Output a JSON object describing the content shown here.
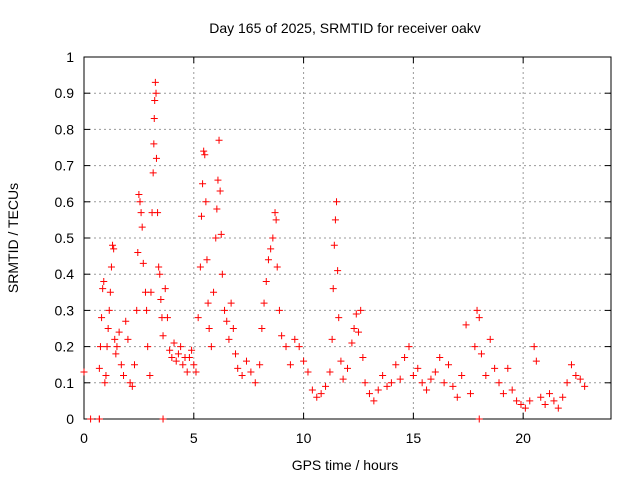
{
  "chart_data": {
    "type": "scatter",
    "title": "Day 165 of 2025, SRMTID for receiver oakv",
    "xlabel": "GPS time / hours",
    "ylabel": "SRMTID / TECUs",
    "xlim": [
      0,
      24
    ],
    "ylim": [
      0,
      1
    ],
    "xticks": [
      0,
      5,
      10,
      15,
      20
    ],
    "xtick_labels": [
      "0",
      "5",
      "10",
      "15",
      "20"
    ],
    "yticks": [
      0,
      0.1,
      0.2,
      0.3,
      0.4,
      0.5,
      0.6,
      0.7,
      0.8,
      0.9,
      1
    ],
    "ytick_labels": [
      "0",
      "0.1",
      "0.2",
      "0.3",
      "0.4",
      "0.5",
      "0.6",
      "0.7",
      "0.8",
      "0.9",
      "1"
    ],
    "grid": true,
    "marker": "+",
    "color": "#ff0000",
    "series": [
      {
        "name": "SRMTID",
        "points": [
          [
            0.0,
            0.13
          ],
          [
            0.3,
            0.0
          ],
          [
            0.7,
            0.0
          ],
          [
            0.7,
            0.0
          ],
          [
            3.6,
            0.0
          ],
          [
            18.0,
            0.0
          ],
          [
            0.7,
            0.14
          ],
          [
            0.75,
            0.2
          ],
          [
            0.8,
            0.28
          ],
          [
            0.85,
            0.36
          ],
          [
            0.9,
            0.38
          ],
          [
            0.95,
            0.1
          ],
          [
            1.0,
            0.12
          ],
          [
            1.05,
            0.2
          ],
          [
            1.1,
            0.25
          ],
          [
            1.15,
            0.3
          ],
          [
            1.2,
            0.35
          ],
          [
            1.25,
            0.42
          ],
          [
            1.3,
            0.48
          ],
          [
            1.35,
            0.47
          ],
          [
            1.4,
            0.22
          ],
          [
            1.45,
            0.18
          ],
          [
            1.5,
            0.2
          ],
          [
            1.6,
            0.24
          ],
          [
            1.7,
            0.15
          ],
          [
            1.8,
            0.12
          ],
          [
            1.9,
            0.27
          ],
          [
            2.0,
            0.22
          ],
          [
            2.1,
            0.1
          ],
          [
            2.2,
            0.09
          ],
          [
            2.3,
            0.15
          ],
          [
            2.4,
            0.3
          ],
          [
            2.45,
            0.46
          ],
          [
            2.5,
            0.62
          ],
          [
            2.55,
            0.6
          ],
          [
            2.6,
            0.57
          ],
          [
            2.65,
            0.53
          ],
          [
            2.7,
            0.43
          ],
          [
            2.8,
            0.35
          ],
          [
            2.85,
            0.3
          ],
          [
            2.9,
            0.2
          ],
          [
            3.0,
            0.12
          ],
          [
            3.05,
            0.35
          ],
          [
            3.1,
            0.57
          ],
          [
            3.15,
            0.68
          ],
          [
            3.18,
            0.76
          ],
          [
            3.2,
            0.83
          ],
          [
            3.22,
            0.88
          ],
          [
            3.25,
            0.93
          ],
          [
            3.28,
            0.9
          ],
          [
            3.3,
            0.72
          ],
          [
            3.35,
            0.57
          ],
          [
            3.4,
            0.42
          ],
          [
            3.45,
            0.4
          ],
          [
            3.5,
            0.33
          ],
          [
            3.55,
            0.28
          ],
          [
            3.6,
            0.23
          ],
          [
            3.7,
            0.36
          ],
          [
            3.8,
            0.28
          ],
          [
            3.9,
            0.19
          ],
          [
            4.0,
            0.17
          ],
          [
            4.1,
            0.21
          ],
          [
            4.2,
            0.16
          ],
          [
            4.3,
            0.18
          ],
          [
            4.4,
            0.2
          ],
          [
            4.5,
            0.15
          ],
          [
            4.6,
            0.17
          ],
          [
            4.7,
            0.13
          ],
          [
            4.8,
            0.17
          ],
          [
            4.9,
            0.19
          ],
          [
            5.0,
            0.15
          ],
          [
            5.1,
            0.13
          ],
          [
            5.2,
            0.28
          ],
          [
            5.3,
            0.42
          ],
          [
            5.35,
            0.56
          ],
          [
            5.4,
            0.65
          ],
          [
            5.45,
            0.74
          ],
          [
            5.5,
            0.73
          ],
          [
            5.55,
            0.6
          ],
          [
            5.6,
            0.44
          ],
          [
            5.65,
            0.32
          ],
          [
            5.7,
            0.25
          ],
          [
            5.8,
            0.2
          ],
          [
            5.9,
            0.35
          ],
          [
            6.0,
            0.5
          ],
          [
            6.05,
            0.58
          ],
          [
            6.1,
            0.66
          ],
          [
            6.15,
            0.77
          ],
          [
            6.2,
            0.63
          ],
          [
            6.25,
            0.51
          ],
          [
            6.3,
            0.4
          ],
          [
            6.4,
            0.3
          ],
          [
            6.5,
            0.27
          ],
          [
            6.6,
            0.22
          ],
          [
            6.7,
            0.32
          ],
          [
            6.8,
            0.25
          ],
          [
            6.9,
            0.18
          ],
          [
            7.0,
            0.14
          ],
          [
            7.2,
            0.12
          ],
          [
            7.4,
            0.16
          ],
          [
            7.6,
            0.13
          ],
          [
            7.8,
            0.1
          ],
          [
            8.0,
            0.15
          ],
          [
            8.1,
            0.25
          ],
          [
            8.2,
            0.32
          ],
          [
            8.3,
            0.38
          ],
          [
            8.4,
            0.44
          ],
          [
            8.5,
            0.47
          ],
          [
            8.6,
            0.5
          ],
          [
            8.7,
            0.57
          ],
          [
            8.75,
            0.55
          ],
          [
            8.8,
            0.42
          ],
          [
            8.9,
            0.3
          ],
          [
            9.0,
            0.23
          ],
          [
            9.2,
            0.2
          ],
          [
            9.4,
            0.15
          ],
          [
            9.6,
            0.22
          ],
          [
            9.8,
            0.2
          ],
          [
            10.0,
            0.16
          ],
          [
            10.2,
            0.13
          ],
          [
            10.4,
            0.08
          ],
          [
            10.6,
            0.06
          ],
          [
            10.8,
            0.07
          ],
          [
            11.0,
            0.09
          ],
          [
            11.2,
            0.13
          ],
          [
            11.3,
            0.22
          ],
          [
            11.35,
            0.36
          ],
          [
            11.4,
            0.48
          ],
          [
            11.45,
            0.55
          ],
          [
            11.5,
            0.6
          ],
          [
            11.55,
            0.41
          ],
          [
            11.6,
            0.28
          ],
          [
            11.7,
            0.16
          ],
          [
            11.8,
            0.11
          ],
          [
            12.0,
            0.14
          ],
          [
            12.2,
            0.21
          ],
          [
            12.3,
            0.25
          ],
          [
            12.4,
            0.29
          ],
          [
            12.5,
            0.24
          ],
          [
            12.6,
            0.3
          ],
          [
            12.7,
            0.17
          ],
          [
            12.8,
            0.1
          ],
          [
            13.0,
            0.07
          ],
          [
            13.2,
            0.05
          ],
          [
            13.4,
            0.08
          ],
          [
            13.6,
            0.12
          ],
          [
            13.8,
            0.09
          ],
          [
            14.0,
            0.1
          ],
          [
            14.2,
            0.15
          ],
          [
            14.4,
            0.11
          ],
          [
            14.6,
            0.17
          ],
          [
            14.8,
            0.2
          ],
          [
            15.0,
            0.12
          ],
          [
            15.2,
            0.14
          ],
          [
            15.4,
            0.1
          ],
          [
            15.6,
            0.08
          ],
          [
            15.8,
            0.11
          ],
          [
            16.0,
            0.13
          ],
          [
            16.2,
            0.17
          ],
          [
            16.4,
            0.1
          ],
          [
            16.6,
            0.15
          ],
          [
            16.8,
            0.09
          ],
          [
            17.0,
            0.06
          ],
          [
            17.2,
            0.12
          ],
          [
            17.4,
            0.26
          ],
          [
            17.6,
            0.07
          ],
          [
            17.8,
            0.2
          ],
          [
            17.9,
            0.3
          ],
          [
            18.0,
            0.28
          ],
          [
            18.1,
            0.18
          ],
          [
            18.3,
            0.12
          ],
          [
            18.5,
            0.22
          ],
          [
            18.7,
            0.14
          ],
          [
            18.9,
            0.1
          ],
          [
            19.1,
            0.07
          ],
          [
            19.3,
            0.14
          ],
          [
            19.5,
            0.08
          ],
          [
            19.7,
            0.05
          ],
          [
            19.9,
            0.04
          ],
          [
            20.1,
            0.03
          ],
          [
            20.3,
            0.05
          ],
          [
            20.5,
            0.2
          ],
          [
            20.6,
            0.16
          ],
          [
            20.8,
            0.06
          ],
          [
            21.0,
            0.04
          ],
          [
            21.2,
            0.07
          ],
          [
            21.4,
            0.05
          ],
          [
            21.6,
            0.03
          ],
          [
            21.8,
            0.06
          ],
          [
            22.0,
            0.1
          ],
          [
            22.2,
            0.15
          ],
          [
            22.4,
            0.12
          ],
          [
            22.6,
            0.11
          ],
          [
            22.8,
            0.09
          ]
        ]
      }
    ]
  }
}
